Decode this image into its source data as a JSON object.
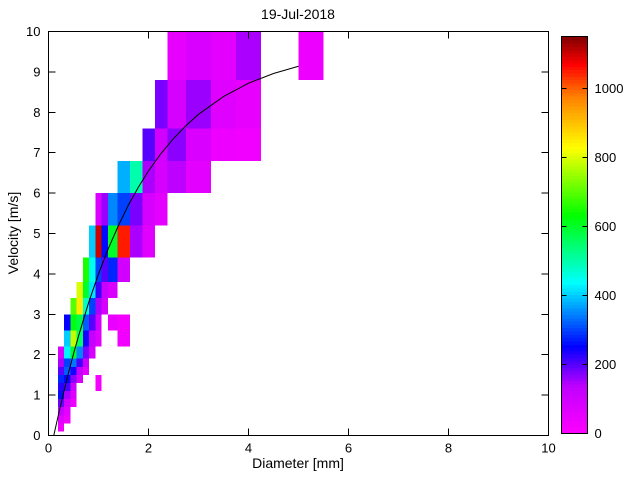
{
  "window": {
    "background": "#ffffff"
  },
  "chart_data": {
    "type": "heatmap",
    "title": "19-Jul-2018",
    "xlabel": "Diameter [mm]",
    "ylabel": "Velocity [m/s]",
    "xlim": [
      0,
      10
    ],
    "ylim": [
      0,
      10
    ],
    "xticks": [
      0,
      2,
      4,
      6,
      8,
      10
    ],
    "yticks": [
      0,
      1,
      2,
      3,
      4,
      5,
      6,
      7,
      8,
      9,
      10
    ],
    "grid": false,
    "legend_position": "colorbar-right",
    "colorbar": {
      "vmin": 0,
      "vmax": 1150,
      "ticks": [
        0,
        200,
        400,
        600,
        800,
        1000
      ],
      "colormap": [
        [
          0.0,
          "#ff00ff"
        ],
        [
          0.12,
          "#c000ff"
        ],
        [
          0.22,
          "#0000ff"
        ],
        [
          0.38,
          "#00ffff"
        ],
        [
          0.55,
          "#00ff00"
        ],
        [
          0.72,
          "#ffff00"
        ],
        [
          0.85,
          "#ff8000"
        ],
        [
          0.93,
          "#ff0000"
        ],
        [
          1.0,
          "#800000"
        ]
      ]
    },
    "cells_format": [
      "d_min_mm",
      "d_max_mm",
      "v_min_ms",
      "v_max_ms",
      "count"
    ],
    "cells": [
      [
        0.187,
        0.312,
        0.1,
        0.3,
        35
      ],
      [
        0.187,
        0.312,
        0.3,
        0.5,
        70
      ],
      [
        0.312,
        0.437,
        0.3,
        0.5,
        30
      ],
      [
        0.187,
        0.312,
        0.5,
        0.7,
        120
      ],
      [
        0.312,
        0.437,
        0.5,
        0.7,
        55
      ],
      [
        0.187,
        0.312,
        0.7,
        0.9,
        190
      ],
      [
        0.312,
        0.437,
        0.7,
        0.9,
        95
      ],
      [
        0.437,
        0.562,
        0.7,
        0.9,
        40
      ],
      [
        0.187,
        0.312,
        0.9,
        1.1,
        260
      ],
      [
        0.312,
        0.437,
        0.9,
        1.1,
        150
      ],
      [
        0.437,
        0.562,
        0.9,
        1.1,
        75
      ],
      [
        0.187,
        0.312,
        1.1,
        1.3,
        230
      ],
      [
        0.312,
        0.437,
        1.1,
        1.3,
        210
      ],
      [
        0.437,
        0.562,
        1.1,
        1.3,
        110
      ],
      [
        0.937,
        1.062,
        1.1,
        1.3,
        25
      ],
      [
        0.187,
        0.312,
        1.3,
        1.5,
        280
      ],
      [
        0.312,
        0.437,
        1.3,
        1.5,
        250
      ],
      [
        0.437,
        0.562,
        1.3,
        1.5,
        170
      ],
      [
        0.562,
        0.687,
        1.3,
        1.5,
        85
      ],
      [
        0.937,
        1.062,
        1.3,
        1.5,
        20
      ],
      [
        0.187,
        0.312,
        1.5,
        1.7,
        200
      ],
      [
        0.312,
        0.437,
        1.5,
        1.7,
        320
      ],
      [
        0.437,
        0.562,
        1.5,
        1.7,
        240
      ],
      [
        0.562,
        0.687,
        1.5,
        1.7,
        130
      ],
      [
        0.687,
        0.812,
        1.5,
        1.7,
        60
      ],
      [
        0.187,
        0.312,
        1.7,
        1.9,
        150
      ],
      [
        0.312,
        0.437,
        1.7,
        1.9,
        300
      ],
      [
        0.437,
        0.562,
        1.7,
        1.9,
        340
      ],
      [
        0.562,
        0.687,
        1.7,
        1.9,
        210
      ],
      [
        0.687,
        0.812,
        1.7,
        1.9,
        110
      ],
      [
        0.187,
        0.312,
        1.9,
        2.2,
        90
      ],
      [
        0.312,
        0.437,
        1.9,
        2.2,
        430
      ],
      [
        0.437,
        0.562,
        1.9,
        2.2,
        600
      ],
      [
        0.562,
        0.687,
        1.9,
        2.2,
        350
      ],
      [
        0.687,
        0.812,
        1.9,
        2.2,
        180
      ],
      [
        0.812,
        0.937,
        1.9,
        2.2,
        90
      ],
      [
        0.312,
        0.437,
        2.2,
        2.6,
        400
      ],
      [
        0.437,
        0.562,
        2.2,
        2.6,
        780
      ],
      [
        0.562,
        0.687,
        2.2,
        2.6,
        560
      ],
      [
        0.687,
        0.812,
        2.2,
        2.6,
        240
      ],
      [
        0.812,
        0.937,
        2.2,
        2.6,
        130
      ],
      [
        0.937,
        1.062,
        2.2,
        2.6,
        70
      ],
      [
        1.375,
        1.625,
        2.2,
        2.6,
        30
      ],
      [
        0.312,
        0.437,
        2.6,
        3.0,
        250
      ],
      [
        0.437,
        0.562,
        2.6,
        3.0,
        620
      ],
      [
        0.562,
        0.687,
        2.6,
        3.0,
        580
      ],
      [
        0.687,
        0.812,
        2.6,
        3.0,
        320
      ],
      [
        0.812,
        0.937,
        2.6,
        3.0,
        200
      ],
      [
        0.937,
        1.062,
        2.6,
        3.0,
        100
      ],
      [
        1.187,
        1.375,
        2.6,
        3.0,
        45
      ],
      [
        1.375,
        1.625,
        2.6,
        3.0,
        25
      ],
      [
        0.437,
        0.562,
        3.0,
        3.4,
        700
      ],
      [
        0.562,
        0.687,
        3.0,
        3.4,
        850
      ],
      [
        0.687,
        0.812,
        3.0,
        3.4,
        480
      ],
      [
        0.812,
        0.937,
        3.0,
        3.4,
        300
      ],
      [
        0.937,
        1.062,
        3.0,
        3.4,
        150
      ],
      [
        1.062,
        1.187,
        3.0,
        3.4,
        90
      ],
      [
        0.562,
        0.687,
        3.4,
        3.8,
        800
      ],
      [
        0.687,
        0.812,
        3.4,
        3.8,
        600
      ],
      [
        0.812,
        0.937,
        3.4,
        3.8,
        420
      ],
      [
        0.937,
        1.062,
        3.4,
        3.8,
        220
      ],
      [
        1.062,
        1.187,
        3.4,
        3.8,
        120
      ],
      [
        1.187,
        1.375,
        3.4,
        3.8,
        80
      ],
      [
        0.687,
        0.812,
        3.8,
        4.4,
        650
      ],
      [
        0.812,
        0.937,
        3.8,
        4.4,
        450
      ],
      [
        0.937,
        1.062,
        3.8,
        4.4,
        300
      ],
      [
        1.062,
        1.187,
        3.8,
        4.4,
        200
      ],
      [
        1.187,
        1.375,
        3.8,
        4.4,
        280
      ],
      [
        1.375,
        1.625,
        3.8,
        4.4,
        100
      ],
      [
        0.812,
        0.937,
        4.4,
        5.2,
        400
      ],
      [
        0.937,
        1.062,
        4.4,
        5.2,
        1100
      ],
      [
        1.062,
        1.187,
        4.4,
        5.2,
        260
      ],
      [
        1.187,
        1.375,
        4.4,
        5.2,
        600
      ],
      [
        1.375,
        1.625,
        4.4,
        5.2,
        1050
      ],
      [
        1.625,
        1.875,
        4.4,
        5.2,
        150
      ],
      [
        1.875,
        2.125,
        4.4,
        5.2,
        70
      ],
      [
        0.937,
        1.062,
        5.2,
        6.0,
        80
      ],
      [
        1.062,
        1.187,
        5.2,
        6.0,
        160
      ],
      [
        1.187,
        1.375,
        5.2,
        6.0,
        350
      ],
      [
        1.375,
        1.625,
        5.2,
        6.0,
        300
      ],
      [
        1.625,
        1.875,
        5.2,
        6.0,
        180
      ],
      [
        1.875,
        2.125,
        5.2,
        6.0,
        90
      ],
      [
        2.125,
        2.375,
        5.2,
        6.0,
        60
      ],
      [
        1.375,
        1.625,
        6.0,
        6.8,
        380
      ],
      [
        1.625,
        1.875,
        6.0,
        6.8,
        500
      ],
      [
        1.875,
        2.125,
        6.0,
        6.8,
        150
      ],
      [
        2.125,
        2.375,
        6.0,
        6.8,
        90
      ],
      [
        2.375,
        2.75,
        6.0,
        6.8,
        140
      ],
      [
        2.75,
        3.25,
        6.0,
        6.8,
        60
      ],
      [
        1.875,
        2.125,
        6.8,
        7.6,
        200
      ],
      [
        2.125,
        2.375,
        6.8,
        7.6,
        100
      ],
      [
        2.375,
        2.75,
        6.8,
        7.6,
        170
      ],
      [
        2.75,
        3.25,
        6.8,
        7.6,
        80
      ],
      [
        3.25,
        3.75,
        6.8,
        7.6,
        40
      ],
      [
        3.75,
        4.25,
        6.8,
        7.6,
        30
      ],
      [
        2.125,
        2.375,
        7.6,
        8.8,
        180
      ],
      [
        2.375,
        2.75,
        7.6,
        8.8,
        90
      ],
      [
        2.75,
        3.25,
        7.6,
        8.8,
        160
      ],
      [
        3.25,
        3.75,
        7.6,
        8.8,
        70
      ],
      [
        3.75,
        4.25,
        7.6,
        8.8,
        50
      ],
      [
        2.375,
        2.75,
        8.8,
        10,
        50
      ],
      [
        2.75,
        3.25,
        8.8,
        10,
        80
      ],
      [
        3.25,
        3.75,
        8.8,
        10,
        60
      ],
      [
        3.75,
        4.25,
        8.8,
        10,
        150
      ],
      [
        5.0,
        5.5,
        8.8,
        10,
        40
      ]
    ],
    "fit_curve": {
      "name": "terminal-velocity-curve",
      "color": "#000000",
      "points": [
        [
          0.105,
          0
        ],
        [
          0.2,
          0.52
        ],
        [
          0.3,
          1.05
        ],
        [
          0.4,
          1.55
        ],
        [
          0.5,
          2.02
        ],
        [
          0.6,
          2.46
        ],
        [
          0.8,
          3.28
        ],
        [
          1.0,
          4.0
        ],
        [
          1.2,
          4.64
        ],
        [
          1.4,
          5.2
        ],
        [
          1.6,
          5.71
        ],
        [
          1.8,
          6.15
        ],
        [
          2.0,
          6.55
        ],
        [
          2.25,
          6.98
        ],
        [
          2.5,
          7.35
        ],
        [
          2.75,
          7.67
        ],
        [
          3.0,
          7.95
        ],
        [
          3.5,
          8.39
        ],
        [
          4.0,
          8.72
        ],
        [
          4.5,
          8.96
        ],
        [
          5.0,
          9.14
        ]
      ]
    }
  }
}
